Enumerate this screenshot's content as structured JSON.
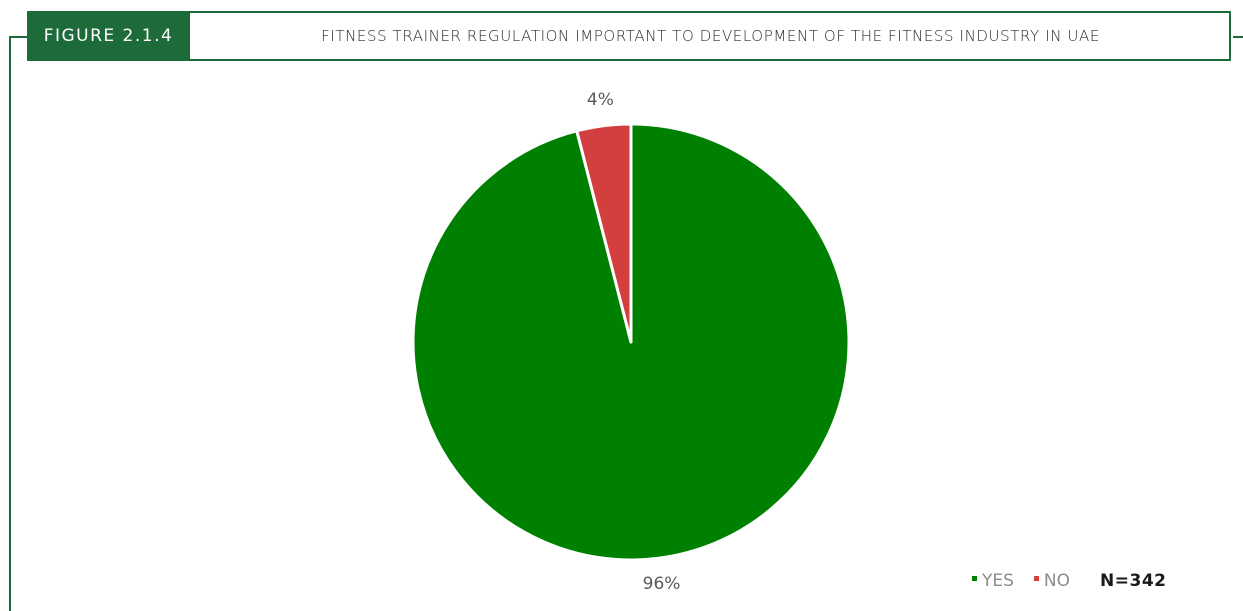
{
  "header": {
    "figure_label": "FIGURE 2.1.4",
    "title": "FITNESS TRAINER REGULATION IMPORTANT TO DEVELOPMENT OF THE FITNESS INDUSTRY IN UAE"
  },
  "colors": {
    "frame": "#1d6b3a",
    "yes": "#008000",
    "no": "#d33f3f"
  },
  "chart_data": {
    "type": "pie",
    "title": "FITNESS TRAINER REGULATION IMPORTANT TO DEVELOPMENT OF THE FITNESS INDUSTRY IN UAE",
    "categories": [
      "YES",
      "NO"
    ],
    "values": [
      96,
      4
    ],
    "data_labels": [
      "96%",
      "4%"
    ],
    "colors": [
      "#008000",
      "#d33f3f"
    ],
    "legend": [
      "YES",
      "NO"
    ],
    "legend_position": "bottom-right",
    "sample_size": "N=342"
  }
}
